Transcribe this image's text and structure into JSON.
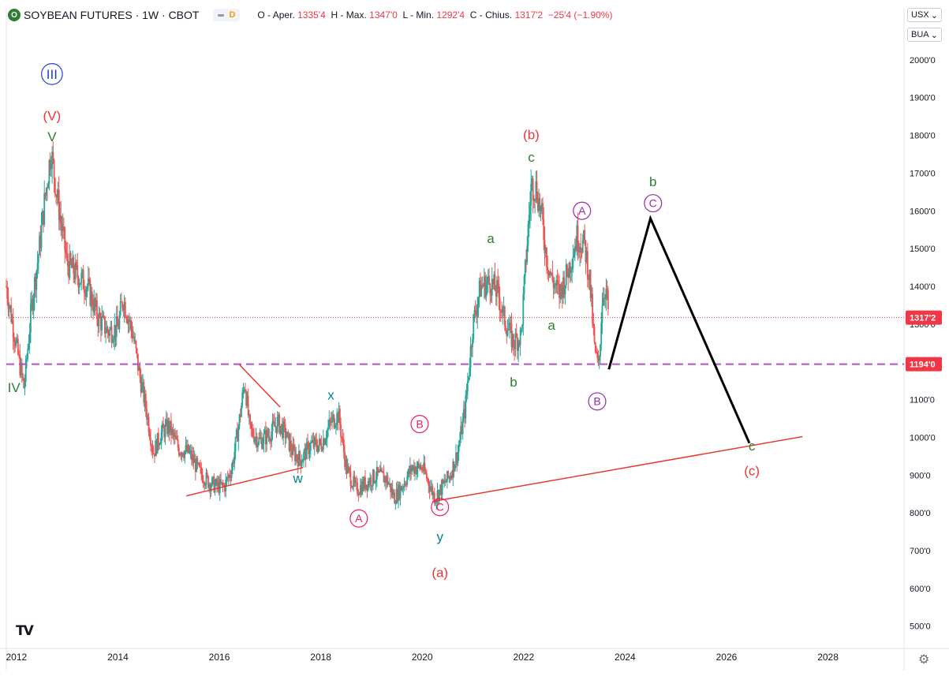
{
  "header": {
    "logo_letter": "O",
    "title": "SOYBEAN FUTURES · 1W · CBOT",
    "badge_letter": "D",
    "ohlc": [
      {
        "label": "O - Aper.",
        "value": "1335'4"
      },
      {
        "label": "H - Max.",
        "value": "1347'0"
      },
      {
        "label": "L - Min.",
        "value": "1292'4"
      },
      {
        "label": "C - Chius.",
        "value": "1317'2"
      },
      {
        "label": "",
        "value": "−25'4 (−1.90%)"
      }
    ]
  },
  "currency": {
    "unit": "USX",
    "subunit": "BUA"
  },
  "colors": {
    "up": "#26a69a",
    "down": "#ef5350",
    "wave_green": "#2e7d32",
    "wave_red": "#e53935",
    "wave_pink": "#e91e63",
    "wave_purple": "#9c27b0",
    "wave_blue": "#1e3fd4",
    "wave_teal": "#00838f",
    "support": "#b84ccf",
    "projection": "#000000",
    "price_tag": "#f23645"
  },
  "chart_data": {
    "type": "candlestick",
    "title": "SOYBEAN FUTURES · 1W · CBOT",
    "xlim": [
      2011.8,
      2029.5
    ],
    "ylim": [
      445,
      2075
    ],
    "y_ticks": [
      500,
      600,
      700,
      800,
      900,
      1000,
      1100,
      1200,
      1300,
      1400,
      1500,
      1600,
      1700,
      1800,
      1900,
      2000
    ],
    "y_tick_labels": [
      "500'0",
      "600'0",
      "700'0",
      "800'0",
      "900'0",
      "1000'0",
      "1100'0",
      "1200'0",
      "1300'0",
      "1400'0",
      "1500'0",
      "1600'0",
      "1700'0",
      "1800'0",
      "1900'0",
      "2000'0"
    ],
    "x_ticks": [
      2012,
      2014,
      2016,
      2018,
      2020,
      2022,
      2024,
      2026,
      2028
    ],
    "x_tick_labels": [
      "2012",
      "2014",
      "2016",
      "2018",
      "2020",
      "2022",
      "2024",
      "2026",
      "2028"
    ],
    "current_price": {
      "value": 1317.25,
      "label": "1317'2"
    },
    "support_level": {
      "value": 1194,
      "label": "1194'0"
    },
    "price_path": [
      [
        2011.8,
        1400
      ],
      [
        2012.0,
        1240
      ],
      [
        2012.15,
        1130
      ],
      [
        2012.3,
        1350
      ],
      [
        2012.45,
        1500
      ],
      [
        2012.55,
        1620
      ],
      [
        2012.68,
        1760
      ],
      [
        2012.8,
        1640
      ],
      [
        2013.0,
        1460
      ],
      [
        2013.2,
        1430
      ],
      [
        2013.4,
        1400
      ],
      [
        2013.6,
        1320
      ],
      [
        2013.8,
        1280
      ],
      [
        2014.0,
        1290
      ],
      [
        2014.1,
        1370
      ],
      [
        2014.22,
        1310
      ],
      [
        2014.3,
        1270
      ],
      [
        2014.42,
        1170
      ],
      [
        2014.55,
        1080
      ],
      [
        2014.7,
        960
      ],
      [
        2014.85,
        1010
      ],
      [
        2015.0,
        1030
      ],
      [
        2015.2,
        970
      ],
      [
        2015.4,
        960
      ],
      [
        2015.6,
        910
      ],
      [
        2015.8,
        880
      ],
      [
        2015.95,
        870
      ],
      [
        2016.1,
        870
      ],
      [
        2016.25,
        920
      ],
      [
        2016.4,
        1050
      ],
      [
        2016.5,
        1150
      ],
      [
        2016.6,
        1020
      ],
      [
        2016.8,
        990
      ],
      [
        2017.0,
        1010
      ],
      [
        2017.15,
        1040
      ],
      [
        2017.3,
        1010
      ],
      [
        2017.45,
        960
      ],
      [
        2017.6,
        940
      ],
      [
        2017.8,
        980
      ],
      [
        2018.0,
        980
      ],
      [
        2018.2,
        1040
      ],
      [
        2018.35,
        1060
      ],
      [
        2018.5,
        920
      ],
      [
        2018.7,
        860
      ],
      [
        2018.9,
        880
      ],
      [
        2019.1,
        900
      ],
      [
        2019.3,
        890
      ],
      [
        2019.45,
        840
      ],
      [
        2019.6,
        870
      ],
      [
        2019.8,
        920
      ],
      [
        2020.0,
        920
      ],
      [
        2020.1,
        890
      ],
      [
        2020.25,
        840
      ],
      [
        2020.4,
        870
      ],
      [
        2020.55,
        900
      ],
      [
        2020.7,
        960
      ],
      [
        2020.85,
        1080
      ],
      [
        2021.0,
        1300
      ],
      [
        2021.15,
        1400
      ],
      [
        2021.35,
        1410
      ],
      [
        2021.5,
        1380
      ],
      [
        2021.6,
        1320
      ],
      [
        2021.8,
        1250
      ],
      [
        2021.95,
        1270
      ],
      [
        2022.05,
        1480
      ],
      [
        2022.15,
        1670
      ],
      [
        2022.25,
        1660
      ],
      [
        2022.35,
        1590
      ],
      [
        2022.45,
        1480
      ],
      [
        2022.55,
        1420
      ],
      [
        2022.7,
        1380
      ],
      [
        2022.85,
        1430
      ],
      [
        2022.95,
        1480
      ],
      [
        2023.05,
        1530
      ],
      [
        2023.2,
        1510
      ],
      [
        2023.3,
        1420
      ],
      [
        2023.4,
        1230
      ],
      [
        2023.48,
        1180
      ],
      [
        2023.55,
        1370
      ],
      [
        2023.62,
        1400
      ],
      [
        2023.68,
        1317
      ]
    ],
    "projection": [
      [
        2023.68,
        1180
      ],
      [
        2024.5,
        1580
      ],
      [
        2026.45,
        985
      ]
    ],
    "trendlines": [
      {
        "color": "#e53935",
        "points": [
          [
            2020.2,
            830
          ],
          [
            2027.5,
            1002
          ]
        ]
      },
      {
        "color": "#e53935",
        "points": [
          [
            2016.4,
            1192
          ],
          [
            2017.2,
            1080
          ]
        ]
      },
      {
        "color": "#e53935",
        "points": [
          [
            2015.35,
            845
          ],
          [
            2017.65,
            920
          ]
        ]
      }
    ],
    "wave_labels": [
      {
        "text": "III",
        "x": 2012.7,
        "y": 1950,
        "color": "#1e3fd4",
        "circle": true,
        "size": 17
      },
      {
        "text": "(V)",
        "x": 2012.7,
        "y": 1840,
        "color": "#e53935",
        "size": 17
      },
      {
        "text": "V",
        "x": 2012.7,
        "y": 1785,
        "color": "#2e7d32",
        "size": 17
      },
      {
        "text": "IV",
        "x": 2011.95,
        "y": 1120,
        "color": "#2e7d32",
        "size": 17
      },
      {
        "text": "w",
        "x": 2017.55,
        "y": 880,
        "color": "#00838f",
        "size": 17
      },
      {
        "text": "x",
        "x": 2018.2,
        "y": 1100,
        "color": "#00838f",
        "size": 17
      },
      {
        "text": "y",
        "x": 2020.35,
        "y": 725,
        "color": "#00838f",
        "size": 17
      },
      {
        "text": "A",
        "x": 2018.75,
        "y": 775,
        "color": "#e91e63",
        "circle": true,
        "size": 14
      },
      {
        "text": "B",
        "x": 2019.95,
        "y": 1025,
        "color": "#e91e63",
        "circle": true,
        "size": 14
      },
      {
        "text": "C",
        "x": 2020.35,
        "y": 805,
        "color": "#e91e63",
        "circle": true,
        "size": 14
      },
      {
        "text": "(a)",
        "x": 2020.35,
        "y": 630,
        "color": "#e53935",
        "size": 17
      },
      {
        "text": "(b)",
        "x": 2022.15,
        "y": 1790,
        "color": "#e53935",
        "size": 17
      },
      {
        "text": "c",
        "x": 2022.15,
        "y": 1730,
        "color": "#2e7d32",
        "size": 17
      },
      {
        "text": "a",
        "x": 2021.35,
        "y": 1515,
        "color": "#2e7d32",
        "size": 17
      },
      {
        "text": "b",
        "x": 2021.8,
        "y": 1135,
        "color": "#2e7d32",
        "size": 17
      },
      {
        "text": "a",
        "x": 2022.55,
        "y": 1285,
        "color": "#2e7d32",
        "size": 17
      },
      {
        "text": "A",
        "x": 2023.15,
        "y": 1590,
        "color": "#9c27b0",
        "circle": true,
        "size": 14
      },
      {
        "text": "B",
        "x": 2023.45,
        "y": 1085,
        "color": "#9c27b0",
        "circle": true,
        "size": 14
      },
      {
        "text": "b",
        "x": 2024.55,
        "y": 1665,
        "color": "#2e7d32",
        "size": 17
      },
      {
        "text": "C",
        "x": 2024.55,
        "y": 1610,
        "color": "#9c27b0",
        "circle": true,
        "size": 14
      },
      {
        "text": "c",
        "x": 2026.5,
        "y": 965,
        "color": "#2e7d32",
        "size": 17
      },
      {
        "text": "(c)",
        "x": 2026.5,
        "y": 900,
        "color": "#e53935",
        "size": 17
      }
    ]
  }
}
